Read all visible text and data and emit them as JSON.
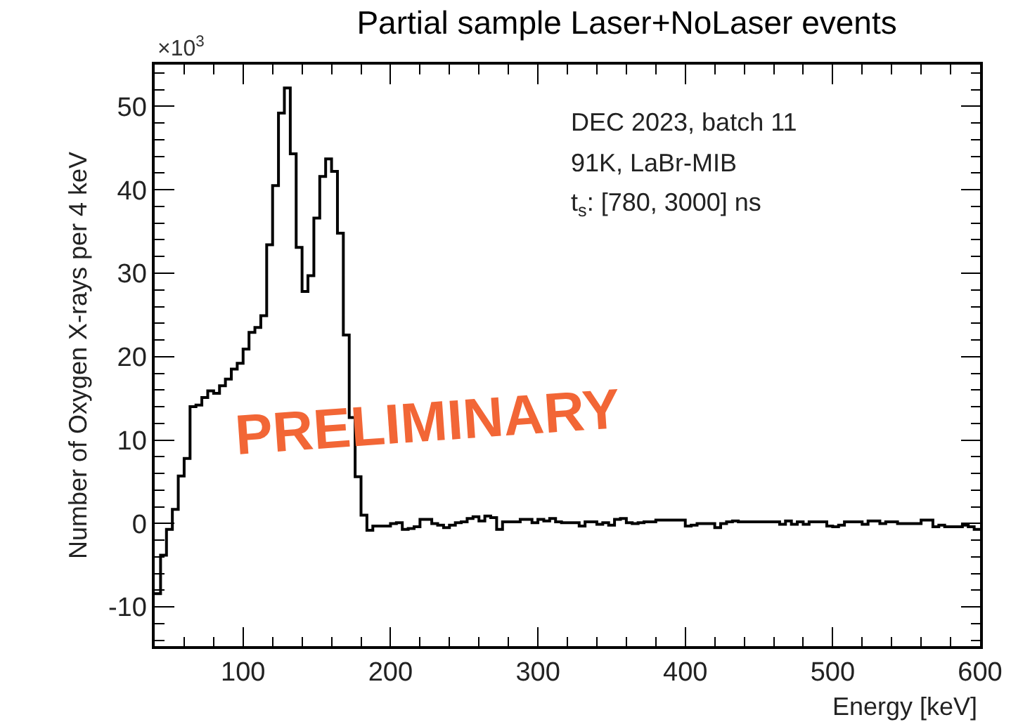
{
  "chart_data": {
    "type": "histogram",
    "title": "Partial sample Laser+NoLaser events",
    "xlabel": "Energy [keV]",
    "ylabel": "Number of Oxygen X-rays per 4 keV",
    "color": "#000000",
    "annotations": [
      "×10$^{3}$",
      "DEC 2023, batch 11",
      "91K, LaBr-MIB",
      "t$_{s}$: [780, 3000] ns",
      "PRELIMINARY"
    ],
    "bins": [
      40,
      44,
      48,
      52,
      56,
      60,
      64,
      68,
      72,
      76,
      80,
      84,
      88,
      92,
      96,
      100,
      104,
      108,
      112,
      116,
      120,
      124,
      128,
      132,
      136,
      140,
      144,
      148,
      152,
      156,
      160,
      164,
      168,
      172,
      176,
      180,
      184,
      188,
      192,
      196,
      200,
      204,
      208,
      212,
      216,
      220,
      224,
      228,
      232,
      236,
      240,
      244,
      248,
      252,
      256,
      260,
      264,
      268,
      272,
      276,
      280,
      284,
      288,
      292,
      296,
      300,
      304,
      308,
      312,
      316,
      320,
      324,
      328,
      332,
      336,
      340,
      344,
      348,
      352,
      356,
      360,
      364,
      368,
      372,
      376,
      380,
      384,
      388,
      392,
      396,
      400,
      404,
      408,
      412,
      416,
      420,
      424,
      428,
      432,
      436,
      440,
      444,
      448,
      452,
      456,
      460,
      464,
      468,
      472,
      476,
      480,
      484,
      488,
      492,
      496,
      500,
      504,
      508,
      512,
      516,
      520,
      524,
      528,
      532,
      536,
      540,
      544,
      548,
      552,
      556,
      560,
      564,
      568,
      572,
      576,
      580,
      584,
      588,
      592,
      596,
      600
    ],
    "values": [
      -8.4,
      -3.8,
      -0.7,
      1.7,
      5.7,
      7.8,
      14.0,
      14.2,
      15.1,
      15.9,
      15.6,
      16.5,
      17.3,
      18.5,
      19.2,
      20.9,
      22.9,
      23.5,
      24.9,
      33.4,
      40.5,
      49.2,
      52.2,
      44.3,
      33.1,
      27.8,
      29.7,
      36.6,
      41.6,
      43.7,
      42.2,
      34.8,
      22.6,
      12.7,
      5.6,
      1.0,
      -0.8,
      -0.3,
      -0.3,
      -0.3,
      0,
      0.1,
      -0.7,
      -0.6,
      -0.4,
      0.5,
      0.5,
      0,
      -0.2,
      -0.5,
      -0.2,
      0.1,
      0.2,
      0.6,
      0.8,
      0.3,
      0.9,
      0.7,
      -0.7,
      0.2,
      0.2,
      0.2,
      0.5,
      0.5,
      0.1,
      0.5,
      0.3,
      0.6,
      0.2,
      0.1,
      0.1,
      0.1,
      -0.3,
      0.2,
      0.2,
      -0.1,
      0.1,
      -0.2,
      0.5,
      0.6,
      0.1,
      0,
      0.1,
      0.2,
      0.2,
      0.4,
      0.4,
      0.4,
      0.4,
      0.4,
      -0.3,
      -0.2,
      0,
      0,
      0,
      -0.5,
      0,
      0.2,
      0.3,
      0.2,
      0.2,
      0.2,
      0.2,
      0.2,
      0.2,
      0.2,
      -0.1,
      0.3,
      -0.1,
      0.2,
      -0.1,
      0.2,
      0.2,
      0.2,
      -0.3,
      -0.4,
      -0.2,
      0.2,
      0.2,
      0.2,
      -0.1,
      0.3,
      0.3,
      0,
      0.2,
      0.2,
      0,
      0,
      0,
      0,
      0.4,
      0.4,
      -0.4,
      -0.2,
      -0.4,
      -0.4,
      -0.4,
      -0.2,
      -0.4,
      -0.7
    ],
    "xlim": [
      40,
      600
    ],
    "xticks": [
      100,
      200,
      300,
      400,
      500,
      600
    ],
    "ylim": [
      -14.7,
      55
    ],
    "yticks": [
      -10,
      0,
      10,
      20,
      30,
      40,
      50
    ],
    "grid": false
  }
}
